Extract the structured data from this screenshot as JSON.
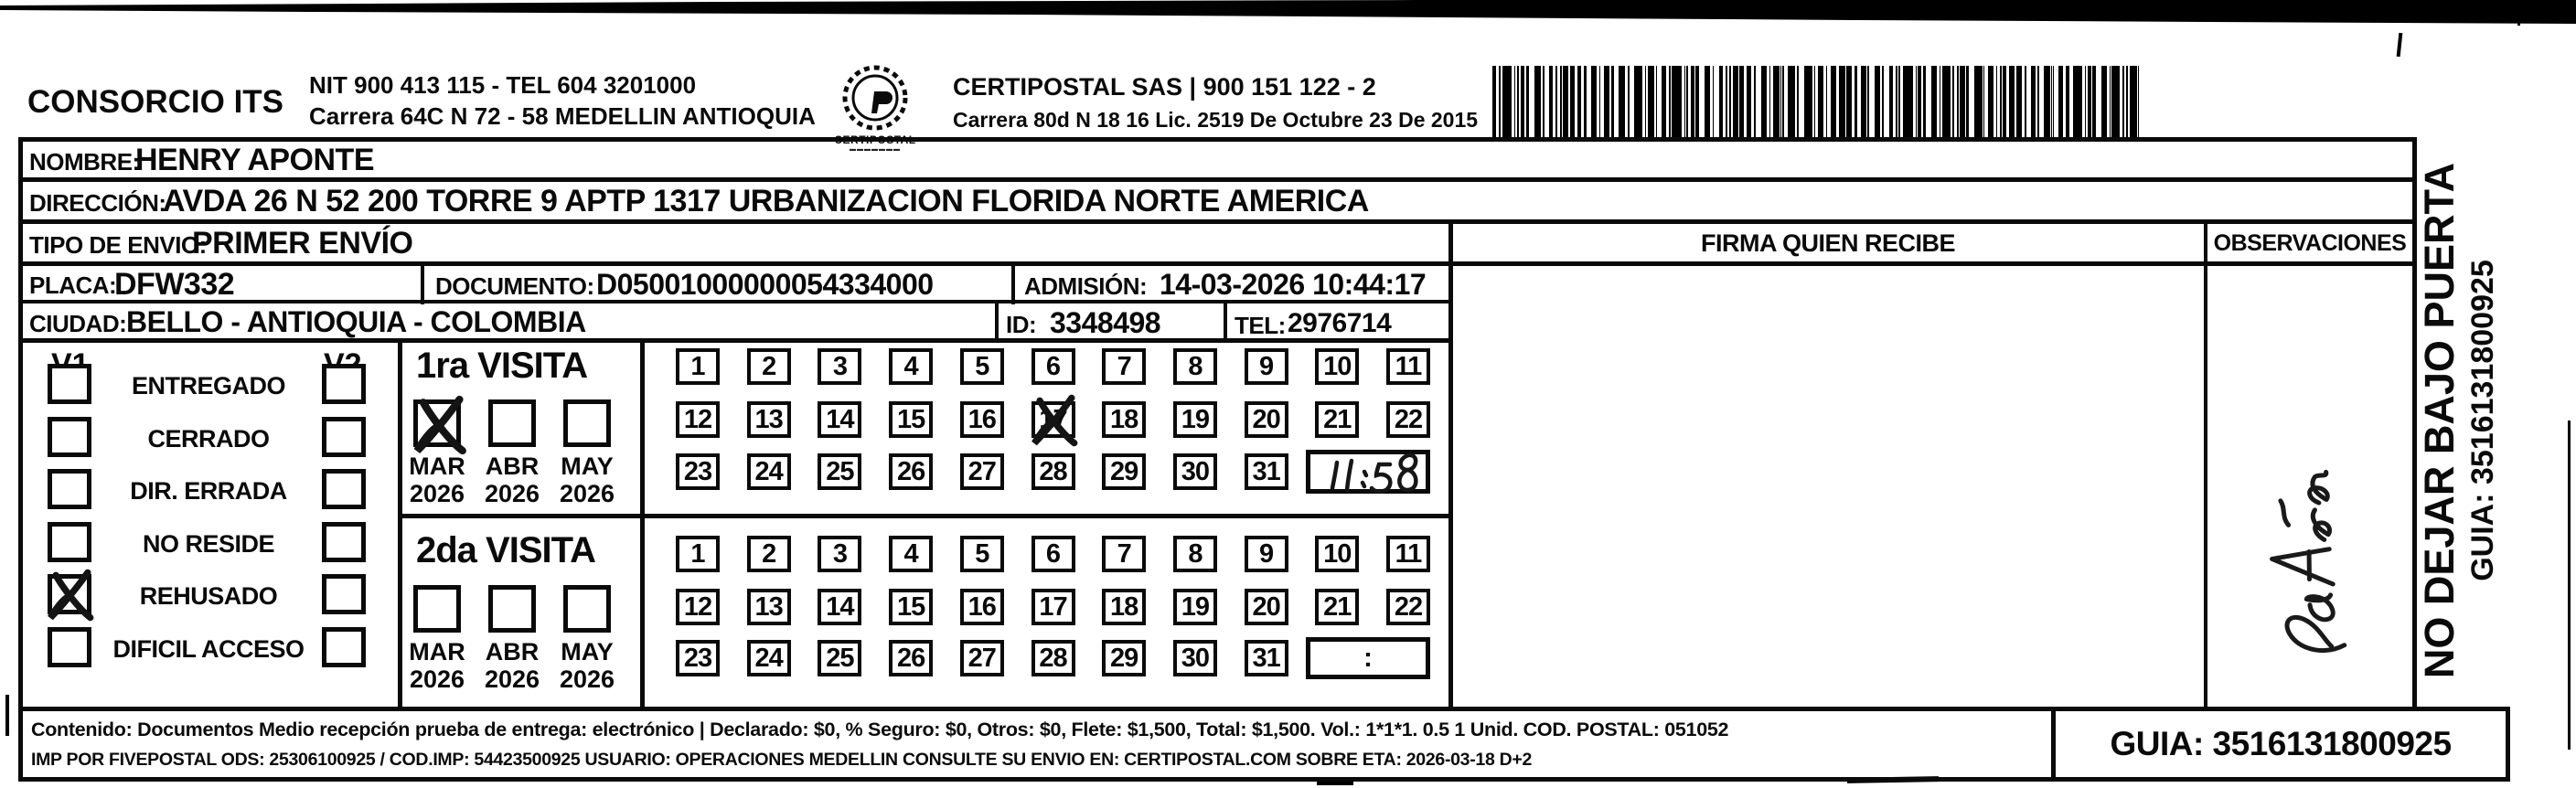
{
  "header": {
    "company": "CONSORCIO ITS",
    "company_info_line1": "NIT 900 413 115 - TEL 604 3201000",
    "company_info_line2": "Carrera 64C N 72 - 58 MEDELLIN ANTIOQUIA",
    "logo_text": "CERTIPOSTAL",
    "certipostal_line1": "CERTIPOSTAL SAS | 900 151 122 - 2",
    "certipostal_line2": "Carrera 80d N 18 16  Lic. 2519 De Octubre 23 De 2015"
  },
  "recipient": {
    "nombre_label": "NOMBRE:",
    "nombre": "HENRY APONTE",
    "direccion_label": "DIRECCIÓN:",
    "direccion": "AVDA 26 N 52 200 TORRE 9 APTP 1317 URBANIZACION FLORIDA NORTE AMERICA",
    "tipo_label": "TIPO DE ENVIO:",
    "tipo": "PRIMER ENVÍO",
    "placa_label": "PLACA:",
    "placa": "DFW332",
    "documento_label": "DOCUMENTO:",
    "documento": "D05001000000054334000",
    "admision_label": "ADMISIÓN:",
    "admision": "14-03-2026 10:44:17",
    "ciudad_label": "CIUDAD:",
    "ciudad": "BELLO - ANTIOQUIA - COLOMBIA",
    "id_label": "ID:",
    "id_value": "3348498",
    "tel_label": "TEL:",
    "tel": "2976714"
  },
  "status_panel": {
    "v1_header": "V1",
    "v2_header": "V2",
    "options": [
      {
        "label": "ENTREGADO",
        "v1_checked": false,
        "v2_checked": false
      },
      {
        "label": "CERRADO",
        "v1_checked": false,
        "v2_checked": false
      },
      {
        "label": "DIR. ERRADA",
        "v1_checked": false,
        "v2_checked": false
      },
      {
        "label": "NO RESIDE",
        "v1_checked": false,
        "v2_checked": false
      },
      {
        "label": "REHUSADO",
        "v1_checked": true,
        "v2_checked": false
      },
      {
        "label": "DIFICIL ACCESO",
        "v1_checked": false,
        "v2_checked": false
      }
    ]
  },
  "visits": {
    "first": {
      "title": "1ra VISITA",
      "months": [
        {
          "label": "MAR",
          "year": "2026",
          "checked": true
        },
        {
          "label": "ABR",
          "year": "2026",
          "checked": false
        },
        {
          "label": "MAY",
          "year": "2026",
          "checked": false
        }
      ],
      "days": [
        1,
        2,
        3,
        4,
        5,
        6,
        7,
        8,
        9,
        10,
        11,
        12,
        13,
        14,
        15,
        16,
        17,
        18,
        19,
        20,
        21,
        22,
        23,
        24,
        25,
        26,
        27,
        28,
        29,
        30,
        31
      ],
      "crossed_day": 17,
      "time_written": "11:58"
    },
    "second": {
      "title": "2da VISITA",
      "months": [
        {
          "label": "MAR",
          "year": "2026",
          "checked": false
        },
        {
          "label": "ABR",
          "year": "2026",
          "checked": false
        },
        {
          "label": "MAY",
          "year": "2026",
          "checked": false
        }
      ],
      "days": [
        1,
        2,
        3,
        4,
        5,
        6,
        7,
        8,
        9,
        10,
        11,
        12,
        13,
        14,
        15,
        16,
        17,
        18,
        19,
        20,
        21,
        22,
        23,
        24,
        25,
        26,
        27,
        28,
        29,
        30,
        31
      ],
      "crossed_day": null,
      "time_placeholder": ":"
    }
  },
  "firma": {
    "header": "FIRMA QUIEN RECIBE"
  },
  "observaciones": {
    "header": "OBSERVACIONES"
  },
  "side_note": {
    "line1": "NO DEJAR BAJO PUERTA",
    "line2": "GUIA: 3516131800925"
  },
  "footer": {
    "line1": "Contenido: Documentos Medio recepción prueba de entrega: electrónico | Declarado: $0, % Seguro: $0, Otros: $0, Flete: $1,500, Total: $1,500. Vol.: 1*1*1. 0.5  1 Unid. COD. POSTAL: 051052",
    "line2": "IMP POR FIVEPOSTAL ODS: 25306100925 / COD.IMP: 54423500925 USUARIO: OPERACIONES MEDELLIN CONSULTE SU ENVIO EN: CERTIPOSTAL.COM SOBRE ETA: 2026-03-18 D+2",
    "guia": "GUIA: 3516131800925"
  }
}
